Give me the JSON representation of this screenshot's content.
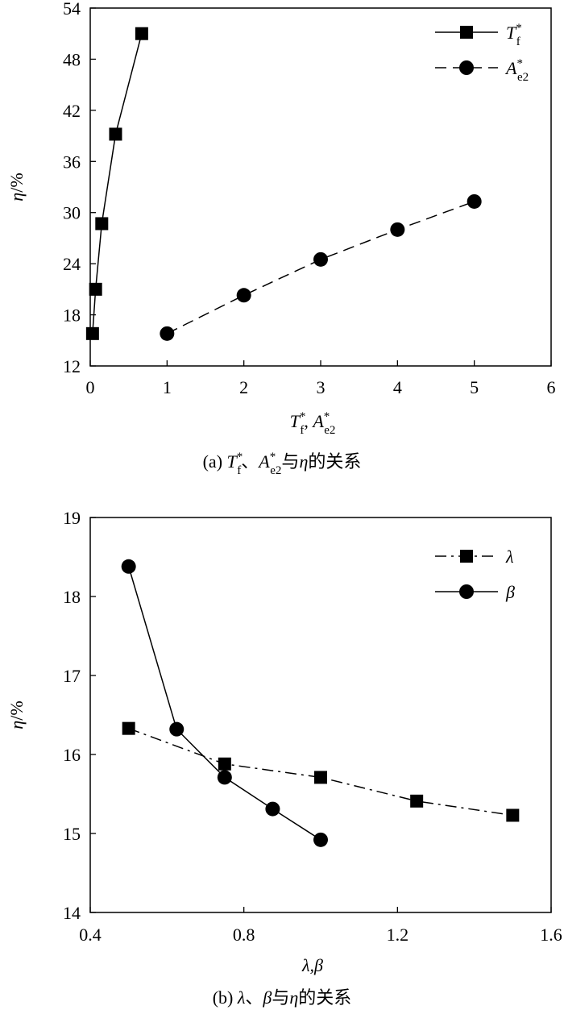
{
  "chart_data": [
    {
      "type": "line",
      "caption": "(a) T*f、A*e2与η的关系",
      "xlabel": "T*f, A*e2",
      "ylabel": "η/%",
      "xlim": [
        0,
        6
      ],
      "ylim": [
        12,
        54
      ],
      "xticks": [
        "0",
        "1",
        "2",
        "3",
        "4",
        "5",
        "6"
      ],
      "yticks": [
        "12",
        "18",
        "24",
        "30",
        "36",
        "42",
        "48",
        "54"
      ],
      "legend_position": "top-right",
      "series": [
        {
          "name": "T*f",
          "marker": "square",
          "line": "solid",
          "x": [
            0.03,
            0.07,
            0.15,
            0.33,
            0.67
          ],
          "y": [
            15.8,
            21.0,
            28.7,
            39.2,
            51.0
          ]
        },
        {
          "name": "A*e2",
          "marker": "circle",
          "line": "dashed",
          "x": [
            1,
            2,
            3,
            4,
            5
          ],
          "y": [
            15.8,
            20.3,
            24.5,
            28.0,
            31.3
          ]
        }
      ]
    },
    {
      "type": "line",
      "caption": "(b) λ、β与η的关系",
      "xlabel": "λ,β",
      "ylabel": "η/%",
      "xlim": [
        0.4,
        1.6
      ],
      "ylim": [
        14,
        19
      ],
      "xticks": [
        "0.4",
        "0.8",
        "1.2",
        "1.6"
      ],
      "yticks": [
        "14",
        "15",
        "16",
        "17",
        "18",
        "19"
      ],
      "legend_position": "top-right",
      "series": [
        {
          "name": "λ",
          "marker": "square",
          "line": "dashdot",
          "x": [
            0.5,
            0.75,
            1.0,
            1.25,
            1.5
          ],
          "y": [
            16.33,
            15.88,
            15.71,
            15.41,
            15.23
          ]
        },
        {
          "name": "β",
          "marker": "circle",
          "line": "solid",
          "x": [
            0.5,
            0.625,
            0.75,
            0.875,
            1.0
          ],
          "y": [
            18.38,
            16.32,
            15.71,
            15.31,
            14.92
          ]
        }
      ]
    }
  ]
}
